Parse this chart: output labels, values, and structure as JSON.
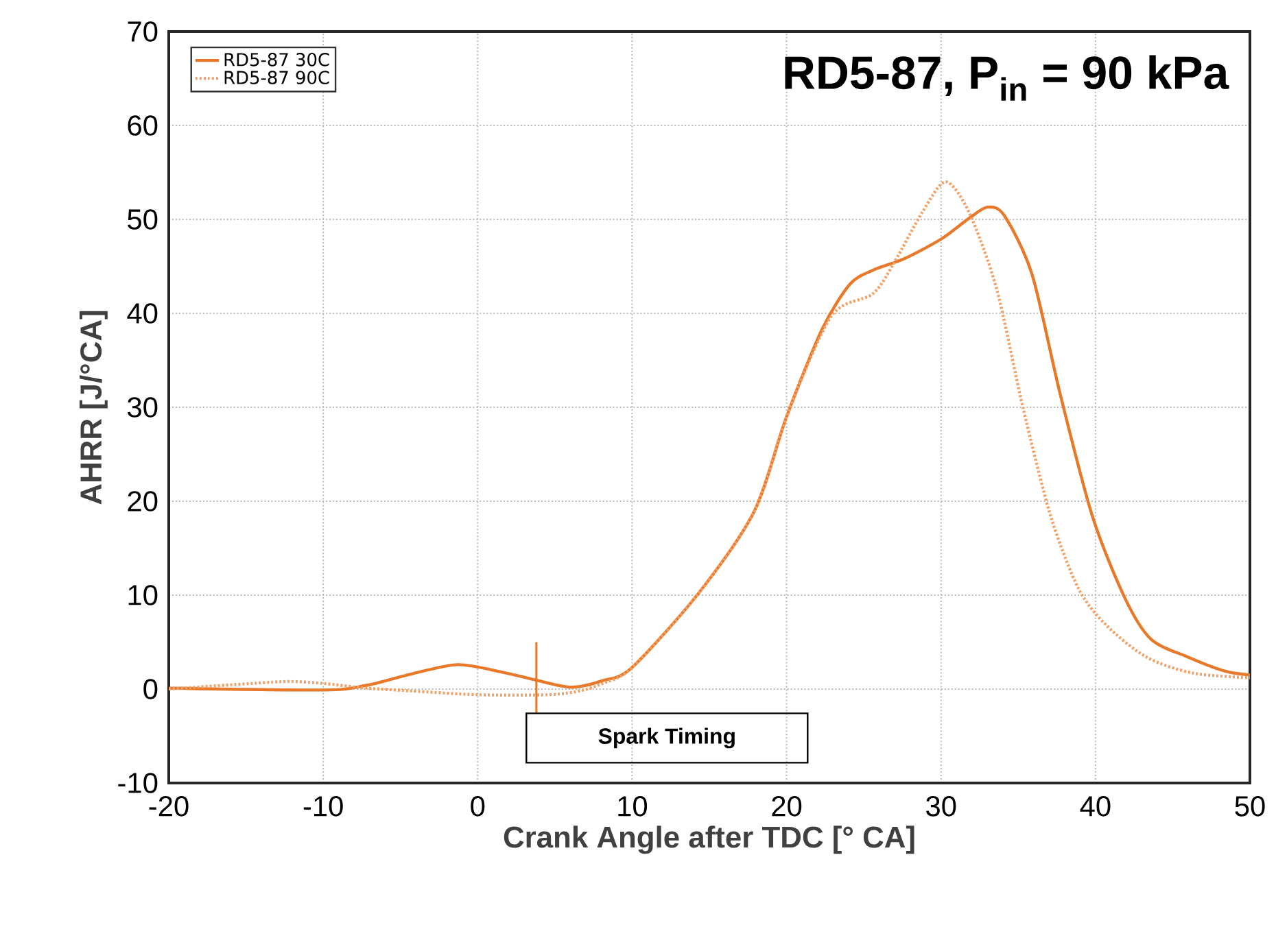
{
  "chart_data": {
    "type": "line",
    "title": "RD5-87, P$_{in}$ = 90 kPa",
    "xlabel": "Crank Angle after TDC [° CA]",
    "ylabel": "AHRR [J/°CA]",
    "xlim": [
      -20,
      50
    ],
    "ylim": [
      -10,
      70
    ],
    "xticks": [
      -20,
      -10,
      0,
      10,
      20,
      30,
      40,
      50
    ],
    "yticks": [
      -10,
      0,
      10,
      20,
      30,
      40,
      50,
      60,
      70
    ],
    "grid": true,
    "legend": "top left",
    "series": [
      {
        "name": "RD5-87 30C",
        "color": "#e8792a",
        "line_style": "solid",
        "x": [
          -20,
          -10,
          -7.2,
          -4.3,
          -1.3,
          1.6,
          3.9,
          6.1,
          8.1,
          10,
          14.3,
          17.9,
          20,
          22.3,
          24.1,
          25.6,
          27.6,
          30,
          31.8,
          33,
          34.1,
          35.9,
          37.7,
          39.8,
          41.9,
          43.6,
          46,
          48.4,
          50
        ],
        "values": [
          0.1,
          -0.1,
          0.4,
          1.6,
          2.6,
          1.8,
          0.9,
          0.2,
          0.9,
          2.3,
          10.2,
          18.9,
          29,
          38.3,
          43.1,
          44.6,
          45.8,
          47.9,
          50.1,
          51.3,
          50.4,
          44.1,
          31.5,
          18.4,
          9.7,
          5.3,
          3.4,
          1.9,
          1.5
        ]
      },
      {
        "name": "RD5-87 90C",
        "color": "#f2a066",
        "line_style": "dotted",
        "x": [
          -20,
          -14.6,
          -12.2,
          -10,
          -7.2,
          -4.3,
          0,
          4.6,
          6.6,
          8.1,
          10,
          14.3,
          17.9,
          20,
          22.9,
          25.6,
          27,
          28.8,
          30.3,
          31.8,
          33.6,
          35.3,
          37.1,
          38.9,
          40.7,
          43.3,
          46.3,
          50
        ],
        "values": [
          0,
          0.6,
          0.8,
          0.6,
          0.1,
          -0.2,
          -0.6,
          -0.6,
          -0.2,
          0.6,
          2.3,
          10.2,
          18.9,
          29,
          39.7,
          42.1,
          45.5,
          50.8,
          54,
          50.8,
          42.6,
          30,
          18.4,
          10.7,
          6.8,
          3.4,
          1.7,
          1.2
        ]
      }
    ],
    "ref_lines": [
      {
        "axis": "x",
        "value": 3.8,
        "label": "Spark Timing",
        "color": "#e8792a"
      }
    ]
  }
}
